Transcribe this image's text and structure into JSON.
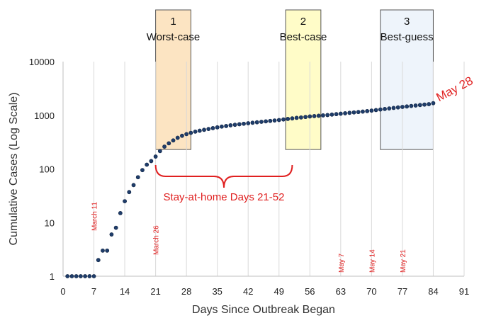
{
  "chart_data": {
    "type": "scatter",
    "xlabel": "Days Since Outbreak Began",
    "ylabel": "Cumulative Cases (Log Scale)",
    "xlim": [
      0,
      91
    ],
    "ylim": [
      1,
      10000
    ],
    "y_scale": "log",
    "x_ticks": [
      "0",
      "7",
      "14",
      "21",
      "28",
      "35",
      "42",
      "49",
      "56",
      "63",
      "70",
      "77",
      "84",
      "91"
    ],
    "y_ticks": [
      "1",
      "10",
      "100",
      "1000",
      "10000"
    ],
    "grid": "vertical",
    "series": [
      {
        "marker_color": "#1f3d6b",
        "x": [
          1,
          2,
          3,
          4,
          5,
          6,
          7,
          8,
          9,
          10,
          11,
          12,
          13,
          14,
          15,
          16,
          17,
          18,
          19,
          20,
          21,
          22,
          23,
          24,
          25,
          26,
          27,
          28,
          29,
          30,
          31,
          32,
          33,
          34,
          35,
          36,
          37,
          38,
          39,
          40,
          41,
          42,
          43,
          44,
          45,
          46,
          47,
          48,
          49,
          50,
          51,
          52,
          53,
          54,
          55,
          56,
          57,
          58,
          59,
          60,
          61,
          62,
          63,
          64,
          65,
          66,
          67,
          68,
          69,
          70,
          71,
          72,
          73,
          74,
          75,
          76,
          77,
          78,
          79,
          80,
          81,
          82,
          83,
          84
        ],
        "y": [
          1,
          1,
          1,
          1,
          1,
          1,
          1,
          2,
          3,
          3,
          6,
          8,
          15,
          25,
          37,
          50,
          70,
          95,
          120,
          140,
          170,
          215,
          260,
          300,
          340,
          380,
          415,
          445,
          470,
          495,
          515,
          535,
          555,
          575,
          595,
          615,
          630,
          650,
          665,
          680,
          695,
          710,
          725,
          740,
          755,
          770,
          785,
          800,
          815,
          835,
          855,
          875,
          895,
          910,
          930,
          950,
          965,
          980,
          995,
          1010,
          1030,
          1050,
          1070,
          1090,
          1110,
          1130,
          1150,
          1170,
          1195,
          1220,
          1250,
          1280,
          1310,
          1340,
          1370,
          1400,
          1430,
          1460,
          1490,
          1520,
          1550,
          1580,
          1610,
          1680
        ]
      }
    ],
    "boxes": [
      {
        "num": "1",
        "label": "Worst-case",
        "x0": 21,
        "x1": 29,
        "fill": "#fce4c2",
        "stroke": "#555"
      },
      {
        "num": "2",
        "label": "Best-case",
        "x0": 50.5,
        "x1": 58.5,
        "fill": "#fffcc8",
        "stroke": "#555"
      },
      {
        "num": "3",
        "label": "Best-guess",
        "x0": 72,
        "x1": 84,
        "fill": "#eef4fb",
        "stroke": "#555"
      }
    ],
    "box_y_bottom": 230,
    "date_labels": [
      {
        "text": "March 11",
        "x": 7
      },
      {
        "text": "March 26",
        "x": 21
      },
      {
        "text": "May 7",
        "x": 63
      },
      {
        "text": "May 14",
        "x": 70
      },
      {
        "text": "May 21",
        "x": 77
      }
    ],
    "brace": {
      "label": "Stay-at-home Days 21-52",
      "x0": 21,
      "x1": 52
    },
    "end_label": {
      "text": "May 28",
      "x": 84,
      "y": 1680
    }
  }
}
